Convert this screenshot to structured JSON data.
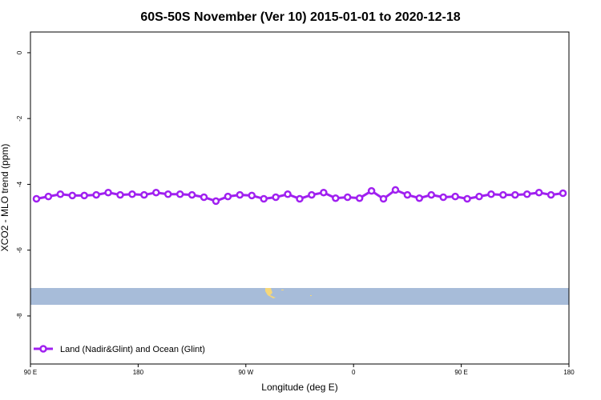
{
  "chart_data": {
    "type": "line",
    "title": "60S-50S November (Ver 10)   2015-01-01 to 2020-12-18",
    "x_label": "Longitude (deg E)",
    "y_label": "XCO2 - MLO trend (ppm)",
    "x": [
      95,
      105,
      115,
      125,
      135,
      145,
      155,
      165,
      175,
      185,
      195,
      205,
      215,
      225,
      235,
      245,
      255,
      265,
      275,
      285,
      295,
      305,
      315,
      325,
      335,
      345,
      355,
      365,
      375,
      385,
      395,
      405,
      415,
      425,
      435,
      445,
      455,
      465,
      475,
      485,
      495,
      505,
      515,
      525,
      535
    ],
    "series": [
      {
        "name": "Land (Nadir&Glint) and Ocean (Glint)",
        "color": "#a020f0",
        "values": [
          -4.44,
          -4.37,
          -4.3,
          -4.34,
          -4.34,
          -4.32,
          -4.25,
          -4.32,
          -4.3,
          -4.32,
          -4.25,
          -4.3,
          -4.3,
          -4.32,
          -4.39,
          -4.51,
          -4.37,
          -4.32,
          -4.34,
          -4.44,
          -4.39,
          -4.3,
          -4.44,
          -4.32,
          -4.25,
          -4.42,
          -4.39,
          -4.42,
          -4.2,
          -4.44,
          -4.17,
          -4.32,
          -4.42,
          -4.32,
          -4.39,
          -4.37,
          -4.44,
          -4.37,
          -4.3,
          -4.32,
          -4.32,
          -4.3,
          -4.25,
          -4.32,
          -4.27
        ]
      }
    ],
    "xlim": [
      90,
      540
    ],
    "xticks": [
      {
        "value": 90,
        "label": "90 E"
      },
      180,
      {
        "value": 270,
        "label": "90 W"
      },
      {
        "value": 360,
        "label": "0"
      },
      {
        "value": 450,
        "label": "90 E"
      },
      {
        "value": 540,
        "label": "180"
      }
    ],
    "ylim": [
      -9.46,
      0.63
    ],
    "yticks": [
      0,
      -2,
      -4,
      -6,
      -8
    ],
    "legend": "bottom left"
  }
}
